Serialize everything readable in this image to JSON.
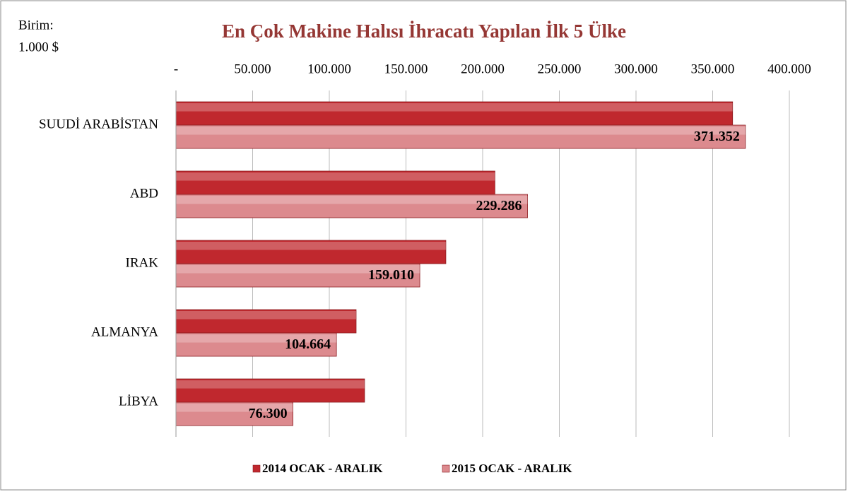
{
  "chart_data": {
    "type": "hbar",
    "title": "En Çok Makine Halısı İhracatı Yapılan İlk 5 Ülke",
    "annotations": [
      "Birim:",
      "1.000 $"
    ],
    "categories": [
      "SUUDİ ARABİSTAN",
      "ABD",
      "IRAK",
      "ALMANYA",
      "LİBYA"
    ],
    "series": [
      {
        "name": "2014 OCAK - ARALIK",
        "color": "#c0282e",
        "values": [
          363000,
          208000,
          176000,
          117500,
          123000
        ]
      },
      {
        "name": "2015 OCAK - ARALIK",
        "color": "#dc8a8e",
        "values": [
          371352,
          229286,
          159010,
          104664,
          76300
        ],
        "value_labels": [
          "371.352",
          "229.286",
          "159.010",
          "104.664",
          "76.300"
        ]
      }
    ],
    "xlim": [
      0,
      400000
    ],
    "xticks": [
      {
        "value": 0,
        "label": "-"
      },
      {
        "value": 50000,
        "label": "50.000"
      },
      {
        "value": 100000,
        "label": "100.000"
      },
      {
        "value": 150000,
        "label": "150.000"
      },
      {
        "value": 200000,
        "label": "200.000"
      },
      {
        "value": 250000,
        "label": "250.000"
      },
      {
        "value": 300000,
        "label": "300.000"
      },
      {
        "value": 350000,
        "label": "350.000"
      },
      {
        "value": 400000,
        "label": "400.000"
      }
    ],
    "grid": true,
    "legend": "bottom"
  }
}
